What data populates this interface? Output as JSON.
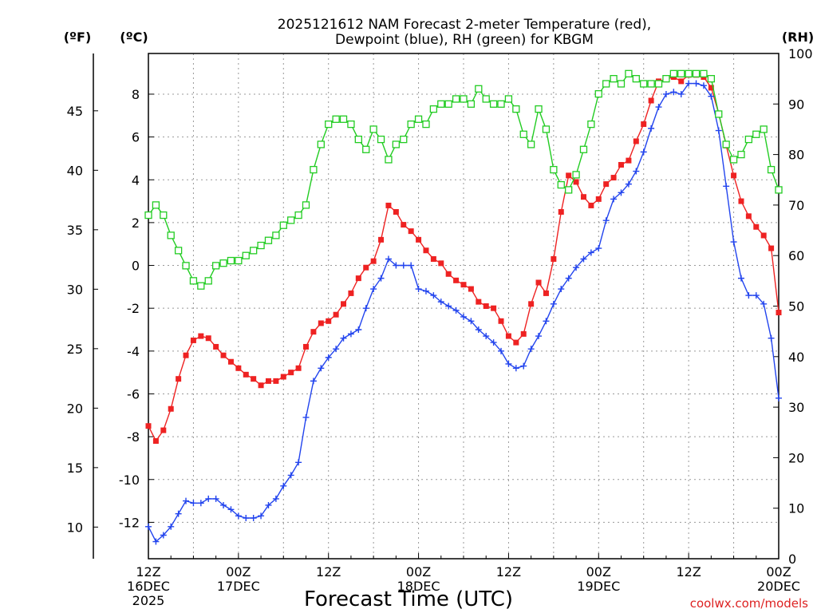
{
  "chart_data": {
    "type": "line",
    "title_line1": "2025121612 NAM Forecast 2-meter Temperature (red),",
    "title_line2": "Dewpoint (blue), RH (green) for KBGM",
    "unit_f": "(ºF)",
    "unit_c": "(ºC)",
    "unit_rh": "(RH)",
    "xlabel": "Forecast Time (UTC)",
    "credit": "coolwx.com/models",
    "grid": true,
    "x_unit": "forecast hour (0 = 12Z 16DEC 2025)",
    "xlim": [
      0,
      84
    ],
    "ylim_c": [
      -13.7,
      9.9
    ],
    "ylim_rh": [
      0,
      100
    ],
    "y_ticks_c": [
      -12,
      -10,
      -8,
      -6,
      -4,
      -2,
      0,
      2,
      4,
      6,
      8
    ],
    "y_ticks_f": [
      10,
      15,
      20,
      25,
      30,
      35,
      40,
      45
    ],
    "y_ticks_rh": [
      0,
      10,
      20,
      30,
      40,
      50,
      60,
      70,
      80,
      90,
      100
    ],
    "x_ticks": [
      {
        "hour": 0,
        "lines": [
          "12Z",
          "16DEC",
          "2025"
        ]
      },
      {
        "hour": 12,
        "lines": [
          "00Z",
          "17DEC"
        ]
      },
      {
        "hour": 24,
        "lines": [
          "12Z"
        ]
      },
      {
        "hour": 36,
        "lines": [
          "00Z",
          "18DEC"
        ]
      },
      {
        "hour": 48,
        "lines": [
          "12Z"
        ]
      },
      {
        "hour": 60,
        "lines": [
          "00Z",
          "19DEC"
        ]
      },
      {
        "hour": 72,
        "lines": [
          "12Z"
        ]
      },
      {
        "hour": 84,
        "lines": [
          "00Z",
          "20DEC"
        ]
      }
    ],
    "x": [
      0,
      1,
      2,
      3,
      4,
      5,
      6,
      7,
      8,
      9,
      10,
      11,
      12,
      13,
      14,
      15,
      16,
      17,
      18,
      19,
      20,
      21,
      22,
      23,
      24,
      25,
      26,
      27,
      28,
      29,
      30,
      31,
      32,
      33,
      34,
      35,
      36,
      37,
      38,
      39,
      40,
      41,
      42,
      43,
      44,
      45,
      46,
      47,
      48,
      49,
      50,
      51,
      52,
      53,
      54,
      55,
      56,
      57,
      58,
      59,
      60,
      61,
      62,
      63,
      64,
      65,
      66,
      67,
      68,
      69,
      70,
      71,
      72,
      73,
      74,
      75,
      76,
      77,
      78,
      79,
      80,
      81,
      82,
      83,
      84
    ],
    "series": [
      {
        "name": "Temperature",
        "axis": "C",
        "color": "#ee2222",
        "marker": "filled-square",
        "values": [
          -7.5,
          -8.2,
          -7.7,
          -6.7,
          -5.3,
          -4.2,
          -3.5,
          -3.3,
          -3.4,
          -3.8,
          -4.2,
          -4.5,
          -4.8,
          -5.1,
          -5.3,
          -5.6,
          -5.4,
          -5.4,
          -5.2,
          -5.0,
          -4.8,
          -3.8,
          -3.1,
          -2.7,
          -2.6,
          -2.3,
          -1.8,
          -1.3,
          -0.6,
          -0.1,
          0.2,
          1.2,
          2.8,
          2.5,
          1.9,
          1.6,
          1.2,
          0.7,
          0.3,
          0.1,
          -0.4,
          -0.7,
          -0.9,
          -1.1,
          -1.7,
          -1.9,
          -2.0,
          -2.6,
          -3.3,
          -3.6,
          -3.2,
          -1.8,
          -0.8,
          -1.3,
          0.3,
          2.5,
          4.2,
          3.9,
          3.2,
          2.8,
          3.1,
          3.8,
          4.1,
          4.7,
          4.9,
          5.8,
          6.6,
          7.7,
          8.6,
          8.7,
          8.8,
          8.6,
          8.9,
          8.9,
          8.8,
          8.3,
          7.1,
          5.6,
          4.2,
          3.0,
          2.3,
          1.8,
          1.4,
          0.8,
          -2.2
        ]
      },
      {
        "name": "Dewpoint",
        "axis": "C",
        "color": "#2244ee",
        "marker": "plus",
        "values": [
          -12.2,
          -12.9,
          -12.6,
          -12.2,
          -11.6,
          -11.0,
          -11.1,
          -11.1,
          -10.9,
          -10.9,
          -11.2,
          -11.4,
          -11.7,
          -11.8,
          -11.8,
          -11.7,
          -11.2,
          -10.9,
          -10.3,
          -9.8,
          -9.2,
          -7.1,
          -5.4,
          -4.8,
          -4.3,
          -3.9,
          -3.4,
          -3.2,
          -3.0,
          -2.0,
          -1.1,
          -0.6,
          0.3,
          0.0,
          0.0,
          0.0,
          -1.1,
          -1.2,
          -1.4,
          -1.7,
          -1.9,
          -2.1,
          -2.4,
          -2.6,
          -3.0,
          -3.3,
          -3.6,
          -4.0,
          -4.6,
          -4.8,
          -4.7,
          -3.9,
          -3.3,
          -2.6,
          -1.8,
          -1.1,
          -0.6,
          -0.1,
          0.3,
          0.6,
          0.8,
          2.1,
          3.1,
          3.4,
          3.8,
          4.4,
          5.3,
          6.4,
          7.4,
          8.0,
          8.1,
          8.0,
          8.5,
          8.5,
          8.4,
          7.9,
          6.3,
          3.7,
          1.1,
          -0.6,
          -1.4,
          -1.4,
          -1.8,
          -3.4,
          -6.2
        ]
      },
      {
        "name": "RH",
        "axis": "RH",
        "color": "#22cc22",
        "marker": "open-square",
        "values": [
          68,
          70,
          68,
          64,
          61,
          58,
          55,
          54,
          55,
          58,
          58.5,
          59,
          59,
          60,
          61,
          62,
          63,
          64,
          66,
          67,
          68,
          70,
          77,
          82,
          86,
          87,
          87,
          86,
          83,
          81,
          85,
          83,
          79,
          82,
          83,
          86,
          87,
          86,
          89,
          90,
          90,
          91,
          91,
          90,
          93,
          91,
          90,
          90,
          91,
          89,
          84,
          82,
          89,
          85,
          77,
          74,
          73,
          76,
          81,
          86,
          92,
          94,
          95,
          94,
          96,
          95,
          94,
          94,
          94,
          95,
          96,
          96,
          96,
          96,
          96,
          95,
          88,
          82,
          79,
          80,
          83,
          84,
          85,
          77,
          73
        ]
      }
    ]
  }
}
